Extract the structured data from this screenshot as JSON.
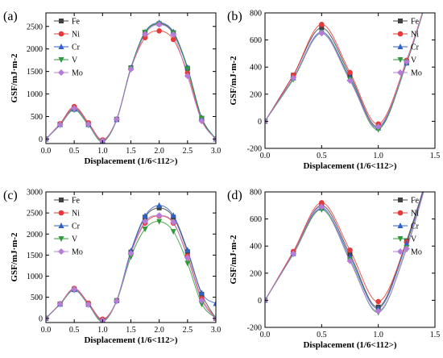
{
  "chart_data": [
    {
      "panel_label": "(a)",
      "type": "scatter",
      "xlabel": "Displacement (1/6<112>)",
      "ylabel": "GSF/mJ·m-2",
      "xlim": [
        0,
        3.0
      ],
      "ylim": [
        -100,
        2800
      ],
      "xticks": [
        0.0,
        0.5,
        1.0,
        1.5,
        2.0,
        2.5,
        3.0
      ],
      "yticks": [
        0,
        500,
        1000,
        1500,
        2000,
        2500
      ],
      "legend": "top-left",
      "x": [
        0,
        0.25,
        0.5,
        0.75,
        1.0,
        1.25,
        1.5,
        1.75,
        2.0,
        2.25,
        2.5,
        2.75,
        3.0
      ],
      "series": [
        {
          "name": "Fe",
          "values": [
            0,
            330,
            690,
            340,
            -40,
            440,
            1580,
            2360,
            2560,
            2360,
            1570,
            460,
            0
          ]
        },
        {
          "name": "Ni",
          "values": [
            0,
            340,
            720,
            360,
            -20,
            440,
            1560,
            2250,
            2400,
            2210,
            1470,
            420,
            0
          ]
        },
        {
          "name": "Cr",
          "values": [
            0,
            320,
            660,
            320,
            -50,
            430,
            1580,
            2380,
            2580,
            2380,
            1590,
            470,
            0
          ]
        },
        {
          "name": "V",
          "values": [
            0,
            310,
            650,
            310,
            -60,
            430,
            1570,
            2370,
            2550,
            2350,
            1560,
            460,
            0
          ]
        },
        {
          "name": "Mo",
          "values": [
            0,
            320,
            680,
            330,
            -40,
            440,
            1550,
            2330,
            2540,
            2320,
            1400,
            400,
            0
          ]
        }
      ]
    },
    {
      "panel_label": "(b)",
      "type": "scatter",
      "xlabel": "Displacement (1/6<112>)",
      "ylabel": "GSF/mJ·m-2",
      "xlim": [
        0,
        1.5
      ],
      "ylim": [
        -200,
        800
      ],
      "xticks": [
        0.0,
        0.5,
        1.0,
        1.5
      ],
      "yticks": [
        -200,
        0,
        200,
        400,
        600,
        800
      ],
      "legend": "top-right",
      "x": [
        0,
        0.25,
        0.5,
        0.75,
        1.0,
        1.25
      ],
      "series": [
        {
          "name": "Fe",
          "values": [
            0,
            340,
            690,
            340,
            -40,
            440
          ]
        },
        {
          "name": "Ni",
          "values": [
            0,
            340,
            715,
            360,
            -20,
            450
          ]
        },
        {
          "name": "Cr",
          "values": [
            0,
            320,
            660,
            320,
            -50,
            430
          ]
        },
        {
          "name": "V",
          "values": [
            0,
            310,
            650,
            310,
            -60,
            430
          ]
        },
        {
          "name": "Mo",
          "values": [
            0,
            320,
            650,
            300,
            -40,
            440
          ]
        }
      ]
    },
    {
      "panel_label": "(c)",
      "type": "scatter",
      "xlabel": "Displacement (1/6<112>)",
      "ylabel": "GSF/mJ·m-2",
      "xlim": [
        0,
        3.0
      ],
      "ylim": [
        -100,
        3000
      ],
      "xticks": [
        0.0,
        0.5,
        1.0,
        1.5,
        2.0,
        2.5,
        3.0
      ],
      "yticks": [
        0,
        500,
        1000,
        1500,
        2000,
        2500,
        3000
      ],
      "legend": "top-left",
      "x": [
        0,
        0.25,
        0.5,
        0.75,
        1.0,
        1.25,
        1.5,
        1.75,
        2.0,
        2.25,
        2.5,
        2.75,
        3.0
      ],
      "series": [
        {
          "name": "Fe",
          "values": [
            0,
            340,
            690,
            340,
            -40,
            420,
            1570,
            2400,
            2620,
            2400,
            1580,
            570,
            0
          ]
        },
        {
          "name": "Ni",
          "values": [
            0,
            345,
            710,
            360,
            -20,
            420,
            1550,
            2260,
            2430,
            2260,
            1480,
            470,
            0
          ]
        },
        {
          "name": "Cr",
          "values": [
            0,
            335,
            680,
            330,
            -60,
            420,
            1600,
            2430,
            2680,
            2440,
            1620,
            600,
            350
          ]
        },
        {
          "name": "V",
          "values": [
            0,
            330,
            670,
            320,
            -80,
            410,
            1460,
            2120,
            2300,
            2060,
            1310,
            340,
            0
          ]
        },
        {
          "name": "Mo",
          "values": [
            0,
            340,
            690,
            330,
            -50,
            410,
            1540,
            2300,
            2440,
            2280,
            1440,
            420,
            0
          ]
        }
      ]
    },
    {
      "panel_label": "(d)",
      "type": "scatter",
      "xlabel": "Displacement (1/6<112>)",
      "ylabel": "GSF/mJ·m-2",
      "xlim": [
        0,
        1.5
      ],
      "ylim": [
        -200,
        800
      ],
      "xticks": [
        0.0,
        0.5,
        1.0,
        1.5
      ],
      "yticks": [
        -200,
        0,
        200,
        400,
        600,
        800
      ],
      "legend": "top-right",
      "x": [
        0,
        0.25,
        0.5,
        0.75,
        1.0,
        1.25
      ],
      "series": [
        {
          "name": "Fe",
          "values": [
            0,
            350,
            700,
            340,
            -50,
            440
          ]
        },
        {
          "name": "Ni",
          "values": [
            0,
            360,
            720,
            370,
            -10,
            430
          ]
        },
        {
          "name": "Cr",
          "values": [
            0,
            345,
            680,
            320,
            -60,
            420
          ]
        },
        {
          "name": "V",
          "values": [
            0,
            340,
            670,
            300,
            -90,
            390
          ]
        },
        {
          "name": "Mo",
          "values": [
            0,
            345,
            690,
            290,
            -80,
            380
          ]
        }
      ]
    }
  ],
  "series_styles": [
    {
      "name": "Fe",
      "color": "#404040",
      "marker": "square"
    },
    {
      "name": "Ni",
      "color": "#e8393a",
      "marker": "circle"
    },
    {
      "name": "Cr",
      "color": "#2f62c8",
      "marker": "triangle-up"
    },
    {
      "name": "V",
      "color": "#2f9a3a",
      "marker": "triangle-down"
    },
    {
      "name": "Mo",
      "color": "#b77bd8",
      "marker": "diamond"
    }
  ]
}
